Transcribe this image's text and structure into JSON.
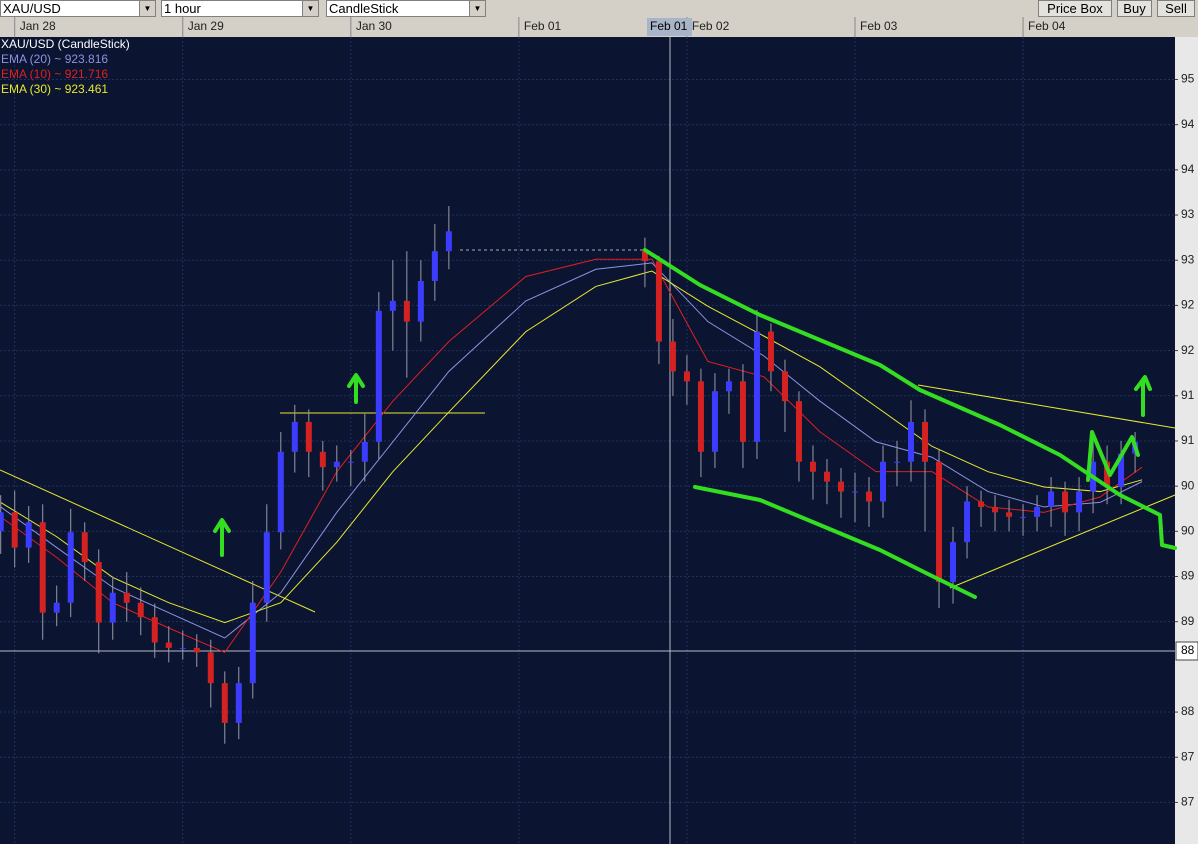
{
  "toolbar": {
    "symbol": "XAU/USD",
    "interval": "1 hour",
    "chart_style": "CandleStick",
    "buttons": [
      "Price Box",
      "Buy",
      "Sell"
    ]
  },
  "crosshair": {
    "date_label": "Feb 01",
    "price_label": "88"
  },
  "chart_data": {
    "type": "candlestick",
    "xlim": [
      -2.1,
      165.7
    ],
    "ylim": [
      865.4,
      954.7
    ],
    "xticks": [
      {
        "value": 0,
        "label": "Jan 28"
      },
      {
        "value": 24,
        "label": "Jan 29"
      },
      {
        "value": 48,
        "label": "Jan 30"
      },
      {
        "value": 72,
        "label": "Feb 01"
      },
      {
        "value": 96,
        "label": "Feb 02"
      },
      {
        "value": 120,
        "label": "Feb 03"
      },
      {
        "value": 144,
        "label": "Feb 04"
      }
    ],
    "yticks": [
      {
        "value": 950,
        "label": "95"
      },
      {
        "value": 945,
        "label": "94"
      },
      {
        "value": 940,
        "label": "94"
      },
      {
        "value": 935,
        "label": "93"
      },
      {
        "value": 930,
        "label": "93"
      },
      {
        "value": 925,
        "label": "92"
      },
      {
        "value": 920,
        "label": "92"
      },
      {
        "value": 915,
        "label": "91"
      },
      {
        "value": 910,
        "label": "91"
      },
      {
        "value": 905,
        "label": "90"
      },
      {
        "value": 900,
        "label": "90"
      },
      {
        "value": 895,
        "label": "89"
      },
      {
        "value": 890,
        "label": "89"
      },
      {
        "value": 880,
        "label": "88"
      },
      {
        "value": 875,
        "label": "87"
      },
      {
        "value": 870,
        "label": "87"
      }
    ],
    "grid": true,
    "series": [
      {
        "name": "XAU/USD (CandleStick)",
        "type": "candlestick",
        "color": "#ffffff",
        "up_color": "#3c3cff",
        "down_color": "#d42222",
        "wick_color": "#9a9aa8",
        "x": [
          -2,
          0,
          2,
          4,
          6,
          8,
          10,
          12,
          14,
          16,
          18,
          20,
          22,
          24,
          26,
          28,
          30,
          32,
          34,
          36,
          38,
          40,
          42,
          44,
          46,
          48,
          50,
          52,
          54,
          56,
          58,
          60,
          62,
          90,
          92,
          94,
          96,
          98,
          100,
          102,
          104,
          106,
          108,
          110,
          112,
          114,
          116,
          118,
          120,
          122,
          124,
          126,
          128,
          130,
          132,
          134,
          136,
          138,
          140,
          142,
          144,
          146,
          148,
          150,
          152,
          154,
          156,
          158,
          160
        ],
        "open": [
          900.0,
          902.1,
          898.2,
          901.0,
          891.0,
          892.1,
          899.9,
          896.6,
          889.9,
          893.2,
          892.1,
          890.5,
          887.7,
          887.1,
          887.1,
          886.6,
          883.2,
          878.8,
          883.2,
          892.1,
          899.9,
          908.8,
          912.1,
          908.8,
          907.1,
          907.7,
          907.7,
          909.9,
          924.4,
          925.5,
          923.2,
          927.7,
          931.0,
          931.0,
          929.9,
          921.0,
          917.7,
          916.6,
          908.8,
          915.5,
          916.6,
          909.9,
          922.1,
          917.7,
          914.4,
          907.7,
          906.6,
          905.5,
          904.4,
          904.4,
          903.3,
          907.7,
          907.7,
          912.1,
          907.7,
          894.4,
          898.8,
          903.3,
          902.7,
          902.1,
          901.6,
          901.6,
          902.7,
          904.4,
          902.1,
          904.4,
          907.7,
          904.9,
          908.6
        ],
        "high": [
          904.0,
          904.5,
          902.8,
          903.0,
          894.0,
          902.5,
          901.0,
          898.0,
          895.0,
          895.5,
          893.8,
          892.0,
          889.5,
          889.0,
          888.6,
          888.0,
          884.5,
          885.0,
          894.5,
          903.0,
          911.0,
          914.0,
          913.5,
          910.0,
          909.5,
          909.0,
          913.0,
          926.5,
          930.0,
          931.0,
          930.0,
          934.0,
          936.0,
          932.5,
          930.5,
          923.5,
          919.5,
          918.0,
          917.5,
          918.0,
          918.5,
          924.5,
          923.0,
          919.0,
          915.5,
          909.5,
          908.0,
          907.0,
          906.5,
          906.0,
          909.5,
          910.0,
          914.5,
          913.5,
          909.0,
          900.5,
          905.0,
          904.5,
          904.0,
          903.5,
          903.0,
          904.0,
          906.0,
          905.5,
          906.0,
          910.0,
          909.5,
          910.0,
          911.0
        ],
        "low": [
          897.5,
          896.0,
          896.5,
          888.0,
          889.5,
          890.5,
          894.5,
          886.5,
          888.0,
          890.0,
          888.5,
          886.0,
          885.5,
          885.8,
          885.0,
          880.5,
          876.5,
          877.0,
          881.5,
          890.0,
          898.0,
          906.5,
          906.0,
          904.5,
          905.5,
          905.0,
          905.5,
          908.0,
          920.0,
          917.0,
          921.0,
          925.5,
          929.0,
          927.0,
          918.5,
          915.0,
          914.0,
          906.0,
          907.0,
          913.0,
          907.0,
          908.0,
          915.5,
          911.0,
          905.5,
          903.5,
          903.0,
          901.5,
          901.0,
          900.5,
          901.5,
          905.0,
          905.5,
          900.0,
          891.5,
          892.0,
          897.0,
          900.5,
          900.0,
          900.0,
          899.5,
          900.0,
          900.5,
          899.5,
          900.0,
          902.0,
          903.0,
          903.0,
          906.5
        ],
        "close": [
          902.1,
          898.2,
          901.0,
          891.0,
          892.1,
          899.9,
          896.6,
          889.9,
          893.2,
          892.1,
          890.5,
          887.7,
          887.1,
          887.1,
          886.6,
          883.2,
          878.8,
          883.2,
          892.1,
          899.9,
          908.8,
          912.1,
          908.8,
          907.1,
          907.7,
          907.7,
          909.9,
          924.4,
          925.5,
          923.2,
          927.7,
          931.0,
          933.2,
          929.9,
          921.0,
          917.7,
          916.6,
          908.8,
          915.5,
          916.6,
          909.9,
          922.1,
          917.7,
          914.4,
          907.7,
          906.6,
          905.5,
          904.4,
          904.4,
          903.3,
          907.7,
          907.7,
          912.1,
          907.7,
          894.4,
          898.8,
          903.3,
          902.7,
          902.1,
          901.6,
          901.6,
          902.7,
          904.4,
          902.1,
          904.4,
          907.7,
          904.9,
          908.6,
          909.9
        ]
      },
      {
        "name": "EMA (20) ~ 923.816",
        "type": "line",
        "color": "#8e93e0",
        "x": [
          -2,
          6,
          14,
          22,
          30,
          38,
          46,
          54,
          62,
          73,
          83,
          91,
          99,
          107,
          115,
          123,
          131,
          139,
          147,
          155,
          161
        ],
        "values": [
          902.7,
          898.2,
          893.8,
          891.0,
          888.2,
          893.2,
          902.1,
          909.9,
          917.7,
          925.5,
          929.0,
          929.7,
          923.2,
          919.4,
          914.4,
          909.9,
          908.2,
          904.4,
          902.7,
          903.2,
          905.5
        ]
      },
      {
        "name": "EMA (10) ~ 921.716",
        "type": "line",
        "color": "#e02020",
        "x": [
          -2,
          6,
          14,
          22,
          30,
          38,
          46,
          54,
          62,
          73,
          83,
          91,
          99,
          107,
          115,
          123,
          131,
          139,
          147,
          155,
          161
        ],
        "values": [
          901.6,
          897.1,
          892.1,
          889.3,
          886.6,
          895.5,
          906.6,
          914.4,
          921.0,
          928.2,
          930.1,
          930.1,
          918.8,
          917.1,
          911.0,
          906.6,
          906.6,
          902.7,
          902.1,
          903.8,
          907.1
        ]
      },
      {
        "name": "EMA (30) ~ 923.461",
        "type": "line",
        "color": "#e8e830",
        "x": [
          -2,
          6,
          14,
          22,
          30,
          38,
          46,
          54,
          62,
          73,
          83,
          91,
          99,
          107,
          115,
          123,
          131,
          139,
          147,
          155,
          161
        ],
        "values": [
          903.2,
          899.4,
          894.9,
          892.1,
          889.9,
          892.1,
          898.8,
          906.6,
          913.2,
          922.1,
          927.1,
          928.8,
          924.9,
          921.6,
          918.2,
          913.8,
          909.4,
          906.6,
          904.9,
          904.4,
          905.7
        ]
      }
    ]
  }
}
